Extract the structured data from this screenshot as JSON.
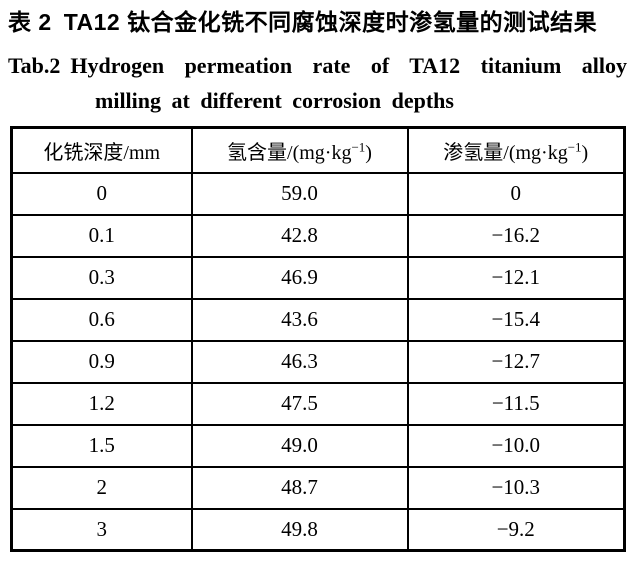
{
  "caption": {
    "cn_label": "表 2",
    "cn_text": "TA12 钛合金化铣不同腐蚀深度时渗氢量的测试结果",
    "en_label": "Tab.2",
    "en_line1": "Hydrogen permeation rate of TA12 titanium alloy",
    "en_line2": "milling at different corrosion depths"
  },
  "table": {
    "columns": [
      {
        "text": "化铣深度/mm",
        "sup": "",
        "suffix": ""
      },
      {
        "text": "氢含量/(mg·kg",
        "sup": "−1",
        "suffix": ")"
      },
      {
        "text": "渗氢量/(mg·kg",
        "sup": "−1",
        "suffix": ")"
      }
    ],
    "rows": [
      [
        "0",
        "59.0",
        "0"
      ],
      [
        "0.1",
        "42.8",
        "−16.2"
      ],
      [
        "0.3",
        "46.9",
        "−12.1"
      ],
      [
        "0.6",
        "43.6",
        "−15.4"
      ],
      [
        "0.9",
        "46.3",
        "−12.7"
      ],
      [
        "1.2",
        "47.5",
        "−11.5"
      ],
      [
        "1.5",
        "49.0",
        "−10.0"
      ],
      [
        "2",
        "48.7",
        "−10.3"
      ],
      [
        "3",
        "49.8",
        "−9.2"
      ]
    ]
  },
  "colors": {
    "text": "#000000",
    "background": "#ffffff",
    "border": "#000000"
  }
}
